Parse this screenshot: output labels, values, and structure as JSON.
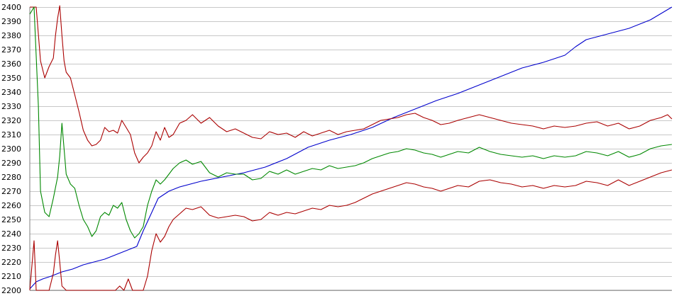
{
  "chart_data": {
    "type": "line",
    "title": "",
    "xlabel": "",
    "ylabel": "",
    "ylim": [
      2200,
      2400
    ],
    "yticks": [
      2200,
      2210,
      2220,
      2230,
      2240,
      2250,
      2260,
      2270,
      2280,
      2290,
      2300,
      2310,
      2320,
      2330,
      2340,
      2350,
      2360,
      2370,
      2380,
      2390,
      2400
    ],
    "grid": true,
    "legend": "none",
    "x_points": 300,
    "series": [
      {
        "color": "#0000cc",
        "points": [
          [
            0,
            2201
          ],
          [
            3,
            2206
          ],
          [
            6,
            2208
          ],
          [
            10,
            2210
          ],
          [
            15,
            2213
          ],
          [
            20,
            2215
          ],
          [
            25,
            2218
          ],
          [
            30,
            2220
          ],
          [
            35,
            2222
          ],
          [
            40,
            2225
          ],
          [
            45,
            2228
          ],
          [
            50,
            2231
          ],
          [
            53,
            2242
          ],
          [
            57,
            2255
          ],
          [
            60,
            2265
          ],
          [
            65,
            2270
          ],
          [
            70,
            2273
          ],
          [
            80,
            2277
          ],
          [
            90,
            2280
          ],
          [
            100,
            2283
          ],
          [
            110,
            2287
          ],
          [
            120,
            2293
          ],
          [
            130,
            2301
          ],
          [
            140,
            2306
          ],
          [
            150,
            2310
          ],
          [
            160,
            2315
          ],
          [
            170,
            2322
          ],
          [
            180,
            2328
          ],
          [
            190,
            2334
          ],
          [
            200,
            2339
          ],
          [
            210,
            2345
          ],
          [
            220,
            2351
          ],
          [
            230,
            2357
          ],
          [
            240,
            2361
          ],
          [
            250,
            2366
          ],
          [
            255,
            2372
          ],
          [
            260,
            2377
          ],
          [
            270,
            2381
          ],
          [
            280,
            2385
          ],
          [
            290,
            2391
          ],
          [
            300,
            2400
          ]
        ]
      },
      {
        "color": "#aa0000",
        "points": [
          [
            0,
            2400
          ],
          [
            3,
            2400
          ],
          [
            5,
            2362
          ],
          [
            7,
            2350
          ],
          [
            9,
            2358
          ],
          [
            11,
            2364
          ],
          [
            12,
            2380
          ],
          [
            13,
            2392
          ],
          [
            14,
            2401
          ],
          [
            15,
            2380
          ],
          [
            16,
            2362
          ],
          [
            17,
            2354
          ],
          [
            19,
            2350
          ],
          [
            21,
            2338
          ],
          [
            23,
            2326
          ],
          [
            25,
            2313
          ],
          [
            27,
            2306
          ],
          [
            29,
            2302
          ],
          [
            31,
            2303
          ],
          [
            33,
            2306
          ],
          [
            35,
            2315
          ],
          [
            37,
            2312
          ],
          [
            39,
            2313
          ],
          [
            41,
            2311
          ],
          [
            43,
            2320
          ],
          [
            45,
            2315
          ],
          [
            47,
            2310
          ],
          [
            49,
            2297
          ],
          [
            51,
            2290
          ],
          [
            53,
            2294
          ],
          [
            55,
            2297
          ],
          [
            57,
            2302
          ],
          [
            59,
            2312
          ],
          [
            61,
            2306
          ],
          [
            63,
            2315
          ],
          [
            65,
            2308
          ],
          [
            67,
            2310
          ],
          [
            70,
            2318
          ],
          [
            73,
            2320
          ],
          [
            76,
            2324
          ],
          [
            80,
            2318
          ],
          [
            84,
            2322
          ],
          [
            88,
            2316
          ],
          [
            92,
            2312
          ],
          [
            96,
            2314
          ],
          [
            100,
            2311
          ],
          [
            104,
            2308
          ],
          [
            108,
            2307
          ],
          [
            112,
            2312
          ],
          [
            116,
            2310
          ],
          [
            120,
            2311
          ],
          [
            124,
            2308
          ],
          [
            128,
            2312
          ],
          [
            132,
            2309
          ],
          [
            136,
            2311
          ],
          [
            140,
            2313
          ],
          [
            144,
            2310
          ],
          [
            148,
            2312
          ],
          [
            152,
            2313
          ],
          [
            156,
            2314
          ],
          [
            160,
            2317
          ],
          [
            164,
            2320
          ],
          [
            168,
            2321
          ],
          [
            172,
            2322
          ],
          [
            176,
            2324
          ],
          [
            180,
            2325
          ],
          [
            184,
            2322
          ],
          [
            188,
            2320
          ],
          [
            192,
            2317
          ],
          [
            196,
            2318
          ],
          [
            200,
            2320
          ],
          [
            205,
            2322
          ],
          [
            210,
            2324
          ],
          [
            215,
            2322
          ],
          [
            220,
            2320
          ],
          [
            225,
            2318
          ],
          [
            230,
            2317
          ],
          [
            235,
            2316
          ],
          [
            240,
            2314
          ],
          [
            245,
            2316
          ],
          [
            250,
            2315
          ],
          [
            255,
            2316
          ],
          [
            260,
            2318
          ],
          [
            265,
            2319
          ],
          [
            270,
            2316
          ],
          [
            275,
            2318
          ],
          [
            280,
            2314
          ],
          [
            285,
            2316
          ],
          [
            290,
            2320
          ],
          [
            295,
            2322
          ],
          [
            298,
            2324
          ],
          [
            300,
            2321
          ]
        ]
      },
      {
        "color": "#008800",
        "points": [
          [
            0,
            2395
          ],
          [
            2,
            2400
          ],
          [
            4,
            2330
          ],
          [
            5,
            2270
          ],
          [
            7,
            2255
          ],
          [
            9,
            2252
          ],
          [
            11,
            2265
          ],
          [
            13,
            2280
          ],
          [
            14,
            2295
          ],
          [
            15,
            2318
          ],
          [
            17,
            2282
          ],
          [
            19,
            2275
          ],
          [
            21,
            2272
          ],
          [
            23,
            2260
          ],
          [
            25,
            2250
          ],
          [
            27,
            2245
          ],
          [
            29,
            2238
          ],
          [
            31,
            2242
          ],
          [
            33,
            2252
          ],
          [
            35,
            2255
          ],
          [
            37,
            2253
          ],
          [
            39,
            2260
          ],
          [
            41,
            2258
          ],
          [
            43,
            2262
          ],
          [
            45,
            2250
          ],
          [
            47,
            2242
          ],
          [
            49,
            2237
          ],
          [
            51,
            2240
          ],
          [
            53,
            2245
          ],
          [
            55,
            2260
          ],
          [
            57,
            2270
          ],
          [
            59,
            2278
          ],
          [
            61,
            2275
          ],
          [
            63,
            2278
          ],
          [
            65,
            2282
          ],
          [
            67,
            2286
          ],
          [
            70,
            2290
          ],
          [
            73,
            2292
          ],
          [
            76,
            2289
          ],
          [
            80,
            2291
          ],
          [
            84,
            2283
          ],
          [
            88,
            2280
          ],
          [
            92,
            2283
          ],
          [
            96,
            2282
          ],
          [
            100,
            2282
          ],
          [
            104,
            2278
          ],
          [
            108,
            2279
          ],
          [
            112,
            2284
          ],
          [
            116,
            2282
          ],
          [
            120,
            2285
          ],
          [
            124,
            2282
          ],
          [
            128,
            2284
          ],
          [
            132,
            2286
          ],
          [
            136,
            2285
          ],
          [
            140,
            2288
          ],
          [
            144,
            2286
          ],
          [
            148,
            2287
          ],
          [
            152,
            2288
          ],
          [
            156,
            2290
          ],
          [
            160,
            2293
          ],
          [
            164,
            2295
          ],
          [
            168,
            2297
          ],
          [
            172,
            2298
          ],
          [
            176,
            2300
          ],
          [
            180,
            2299
          ],
          [
            184,
            2297
          ],
          [
            188,
            2296
          ],
          [
            192,
            2294
          ],
          [
            196,
            2296
          ],
          [
            200,
            2298
          ],
          [
            205,
            2297
          ],
          [
            210,
            2301
          ],
          [
            215,
            2298
          ],
          [
            220,
            2296
          ],
          [
            225,
            2295
          ],
          [
            230,
            2294
          ],
          [
            235,
            2295
          ],
          [
            240,
            2293
          ],
          [
            245,
            2295
          ],
          [
            250,
            2294
          ],
          [
            255,
            2295
          ],
          [
            260,
            2298
          ],
          [
            265,
            2297
          ],
          [
            270,
            2295
          ],
          [
            275,
            2298
          ],
          [
            280,
            2294
          ],
          [
            285,
            2296
          ],
          [
            290,
            2300
          ],
          [
            295,
            2302
          ],
          [
            300,
            2303
          ]
        ]
      },
      {
        "color": "#aa0000",
        "points": [
          [
            0,
            2200
          ],
          [
            2,
            2235
          ],
          [
            3,
            2200
          ],
          [
            5,
            2200
          ],
          [
            7,
            2200
          ],
          [
            9,
            2200
          ],
          [
            11,
            2212
          ],
          [
            12,
            2225
          ],
          [
            13,
            2235
          ],
          [
            14,
            2220
          ],
          [
            15,
            2203
          ],
          [
            17,
            2200
          ],
          [
            20,
            2200
          ],
          [
            25,
            2200
          ],
          [
            30,
            2200
          ],
          [
            35,
            2200
          ],
          [
            40,
            2200
          ],
          [
            42,
            2203
          ],
          [
            44,
            2200
          ],
          [
            46,
            2208
          ],
          [
            48,
            2200
          ],
          [
            50,
            2200
          ],
          [
            53,
            2200
          ],
          [
            55,
            2210
          ],
          [
            57,
            2228
          ],
          [
            59,
            2240
          ],
          [
            61,
            2234
          ],
          [
            63,
            2238
          ],
          [
            65,
            2245
          ],
          [
            67,
            2250
          ],
          [
            70,
            2254
          ],
          [
            73,
            2258
          ],
          [
            76,
            2257
          ],
          [
            80,
            2259
          ],
          [
            84,
            2253
          ],
          [
            88,
            2251
          ],
          [
            92,
            2252
          ],
          [
            96,
            2253
          ],
          [
            100,
            2252
          ],
          [
            104,
            2249
          ],
          [
            108,
            2250
          ],
          [
            112,
            2255
          ],
          [
            116,
            2253
          ],
          [
            120,
            2255
          ],
          [
            124,
            2254
          ],
          [
            128,
            2256
          ],
          [
            132,
            2258
          ],
          [
            136,
            2257
          ],
          [
            140,
            2260
          ],
          [
            144,
            2259
          ],
          [
            148,
            2260
          ],
          [
            152,
            2262
          ],
          [
            156,
            2265
          ],
          [
            160,
            2268
          ],
          [
            164,
            2270
          ],
          [
            168,
            2272
          ],
          [
            172,
            2274
          ],
          [
            176,
            2276
          ],
          [
            180,
            2275
          ],
          [
            184,
            2273
          ],
          [
            188,
            2272
          ],
          [
            192,
            2270
          ],
          [
            196,
            2272
          ],
          [
            200,
            2274
          ],
          [
            205,
            2273
          ],
          [
            210,
            2277
          ],
          [
            215,
            2278
          ],
          [
            220,
            2276
          ],
          [
            225,
            2275
          ],
          [
            230,
            2273
          ],
          [
            235,
            2274
          ],
          [
            240,
            2272
          ],
          [
            245,
            2274
          ],
          [
            250,
            2273
          ],
          [
            255,
            2274
          ],
          [
            260,
            2277
          ],
          [
            265,
            2276
          ],
          [
            270,
            2274
          ],
          [
            275,
            2278
          ],
          [
            280,
            2274
          ],
          [
            285,
            2277
          ],
          [
            290,
            2280
          ],
          [
            295,
            2283
          ],
          [
            300,
            2285
          ]
        ]
      }
    ]
  }
}
